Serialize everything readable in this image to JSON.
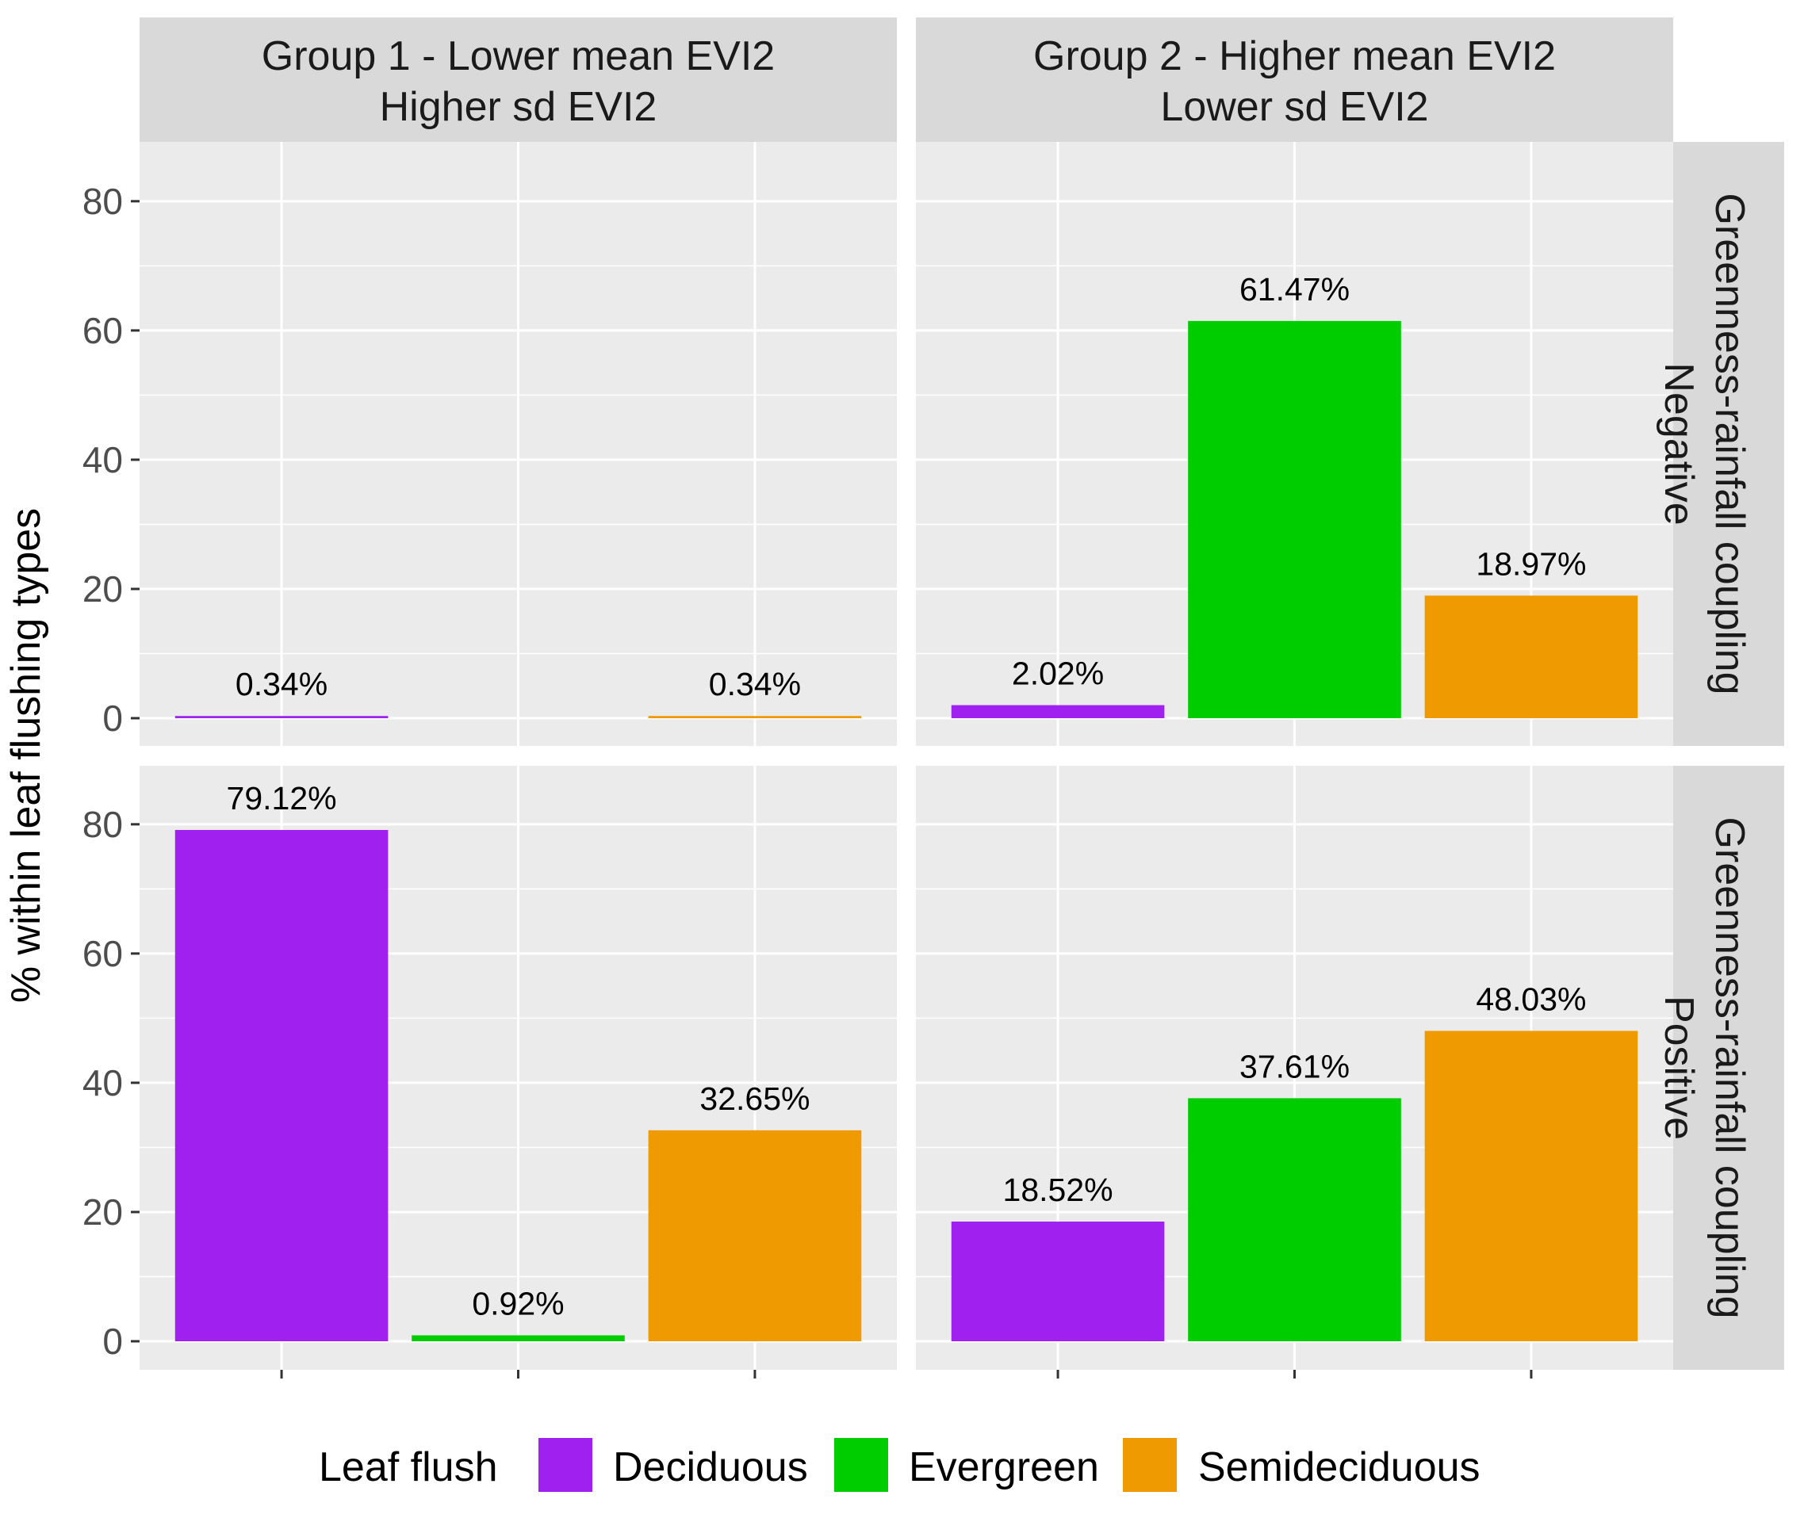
{
  "chart_data": {
    "type": "bar",
    "ylabel": "% within leaf flushing types",
    "xlabel": "",
    "ylim": [
      0,
      88
    ],
    "y_ticks": [
      0,
      20,
      40,
      60,
      80
    ],
    "grid": true,
    "categories": [
      "Deciduous",
      "Evergreen",
      "Semideciduous"
    ],
    "column_facets": [
      {
        "lines": [
          "Group 1 - Lower mean EVI2",
          "Higher sd EVI2"
        ]
      },
      {
        "lines": [
          "Group 2 - Higher mean EVI2",
          "Lower sd EVI2"
        ]
      }
    ],
    "row_facets": [
      {
        "lines": [
          "Greenness-rainfall coupling",
          "Negative"
        ]
      },
      {
        "lines": [
          "Greenness-rainfall coupling",
          "Positive"
        ]
      }
    ],
    "panels": [
      {
        "row": 0,
        "col": 0,
        "bars": [
          {
            "category": "Deciduous",
            "value": 0.34,
            "label": "0.34%"
          },
          {
            "category": "Semideciduous",
            "value": 0.34,
            "label": "0.34%"
          }
        ]
      },
      {
        "row": 0,
        "col": 1,
        "bars": [
          {
            "category": "Deciduous",
            "value": 2.02,
            "label": "2.02%"
          },
          {
            "category": "Evergreen",
            "value": 61.47,
            "label": "61.47%"
          },
          {
            "category": "Semideciduous",
            "value": 18.97,
            "label": "18.97%"
          }
        ]
      },
      {
        "row": 1,
        "col": 0,
        "bars": [
          {
            "category": "Deciduous",
            "value": 79.12,
            "label": "79.12%"
          },
          {
            "category": "Evergreen",
            "value": 0.92,
            "label": "0.92%"
          },
          {
            "category": "Semideciduous",
            "value": 32.65,
            "label": "32.65%"
          }
        ]
      },
      {
        "row": 1,
        "col": 1,
        "bars": [
          {
            "category": "Deciduous",
            "value": 18.52,
            "label": "18.52%"
          },
          {
            "category": "Evergreen",
            "value": 37.61,
            "label": "37.61%"
          },
          {
            "category": "Semideciduous",
            "value": 48.03,
            "label": "48.03%"
          }
        ]
      }
    ],
    "legend": {
      "title": "Leaf flush",
      "position": "bottom",
      "items": [
        {
          "label": "Deciduous",
          "color": "#a020f0"
        },
        {
          "label": "Evergreen",
          "color": "#00cd00"
        },
        {
          "label": "Semideciduous",
          "color": "#ee9a00"
        }
      ]
    }
  }
}
